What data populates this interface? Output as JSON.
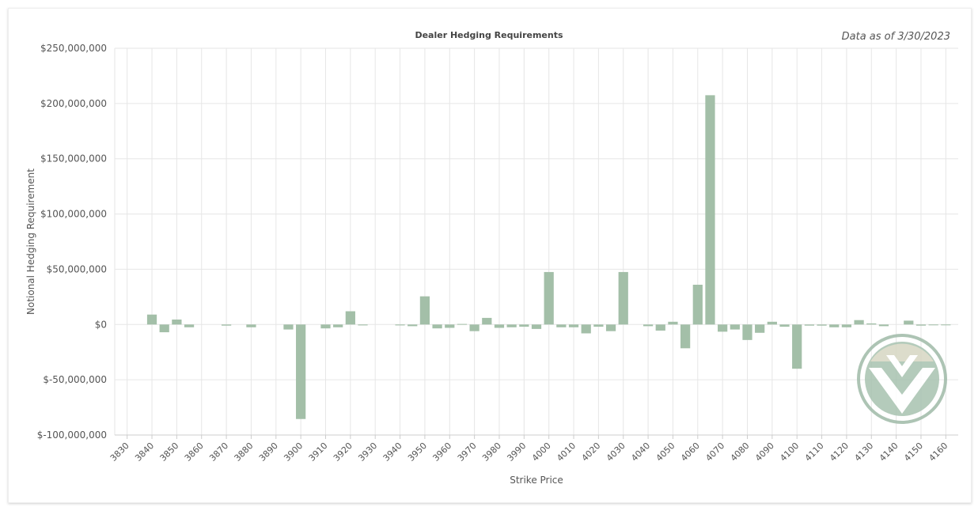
{
  "data_as_of": "Data as of 3/30/2023",
  "colors": {
    "bar": "#a3bfa8",
    "grid": "#e6e6e6",
    "text": "#555555"
  },
  "watermark": {
    "icon": "brand-logo-icon"
  },
  "chart_data": {
    "type": "bar",
    "title": "Dealer Hedging Requirements",
    "xlabel": "Strike Price",
    "ylabel": "Notional Hedging Requirement",
    "ylim": [
      -100000000,
      250000000
    ],
    "yticks": [
      250000000,
      200000000,
      150000000,
      100000000,
      50000000,
      0,
      -50000000,
      -100000000
    ],
    "ytick_labels": [
      "$250,000,000",
      "$200,000,000",
      "$150,000,000",
      "$100,000,000",
      "$50,000,000",
      "$0",
      "$-50,000,000",
      "$-100,000,000"
    ],
    "x_min": 3825,
    "x_max": 4165,
    "xticks": [
      3830,
      3840,
      3850,
      3860,
      3870,
      3880,
      3890,
      3900,
      3910,
      3920,
      3930,
      3940,
      3950,
      3960,
      3970,
      3980,
      3990,
      4000,
      4010,
      4020,
      4030,
      4040,
      4050,
      4060,
      4070,
      4080,
      4090,
      4100,
      4110,
      4120,
      4130,
      4140,
      4150,
      4160
    ],
    "grid": true,
    "legend": "none",
    "x": [
      3840,
      3845,
      3850,
      3855,
      3870,
      3880,
      3895,
      3900,
      3910,
      3915,
      3920,
      3925,
      3940,
      3945,
      3950,
      3955,
      3960,
      3965,
      3970,
      3975,
      3980,
      3985,
      3990,
      3995,
      4000,
      4005,
      4010,
      4015,
      4020,
      4025,
      4030,
      4040,
      4045,
      4050,
      4055,
      4060,
      4065,
      4070,
      4075,
      4080,
      4085,
      4090,
      4095,
      4100,
      4105,
      4110,
      4115,
      4120,
      4125,
      4130,
      4135,
      4145,
      4150,
      4155,
      4160
    ],
    "values": [
      9000000,
      -7000000,
      4500000,
      -2500000,
      -1000000,
      -2500000,
      -4500000,
      -85500000,
      -3500000,
      -2500000,
      12000000,
      -800000,
      -800000,
      -1500000,
      25500000,
      -3500000,
      -3000000,
      500000,
      -6000000,
      6000000,
      -3000000,
      -2500000,
      -2000000,
      -4000000,
      47500000,
      -2500000,
      -2500000,
      -8000000,
      -2000000,
      -6000000,
      47500000,
      -1500000,
      -5500000,
      2500000,
      -21500000,
      36000000,
      207500000,
      -6500000,
      -4500000,
      -14000000,
      -7500000,
      2500000,
      -2000000,
      -40000000,
      -1000000,
      -1000000,
      -2500000,
      -2500000,
      4000000,
      1000000,
      -1500000,
      3500000,
      -1000000,
      -500000,
      -500000
    ]
  }
}
